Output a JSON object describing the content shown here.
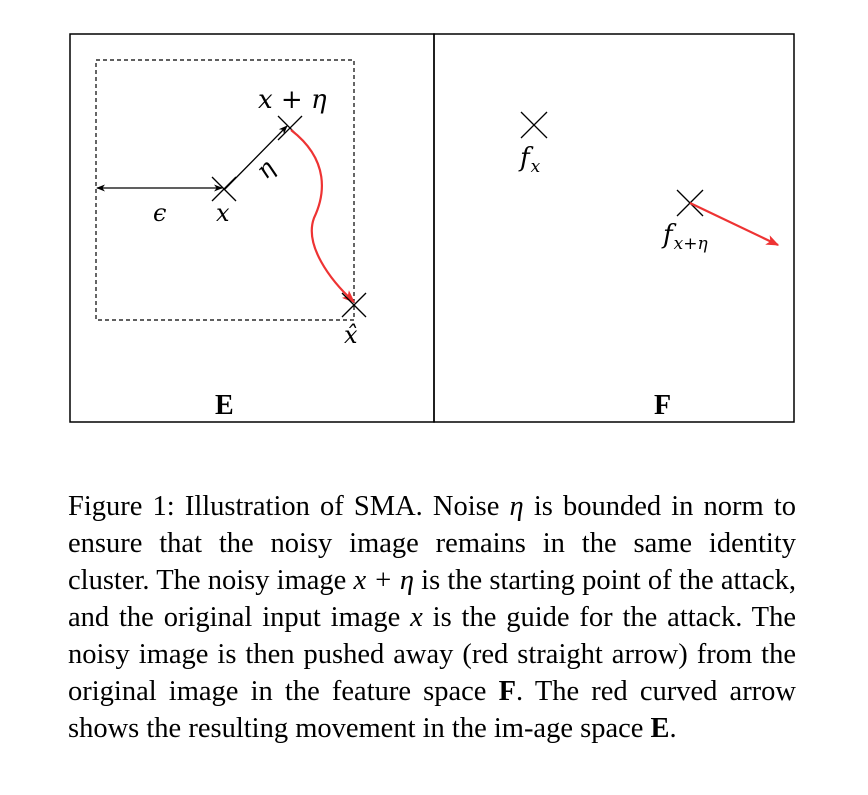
{
  "diagram": {
    "panel_left_label": "E",
    "panel_right_label": "F",
    "labels": {
      "x": "x",
      "x_plus_eta": "x + η",
      "eta": "η",
      "epsilon": "ϵ",
      "x_hat": "x̂",
      "f_x_base": "f",
      "f_x_sub": "x",
      "f_xeta_base": "f",
      "f_xeta_sub": "x+η"
    },
    "colors": {
      "arrow_red": "#ee3333",
      "line": "#000000"
    }
  },
  "caption": {
    "p1": "Figure 1: Illustration of SMA. Noise ",
    "m1": "η",
    "p2": " is bounded in norm to ensure that the noisy image remains in the same identity cluster. The noisy image ",
    "m2": "x + η",
    "p3": " is the starting point of the attack, and the original input image ",
    "m3": "x",
    "p4": " is the guide for the attack. The noisy image is then pushed away (red straight arrow) from the original image in the feature space ",
    "b1": "F",
    "p5": ". The red curved arrow shows the resulting movement in the im-age space ",
    "b2": "E",
    "p6": "."
  }
}
